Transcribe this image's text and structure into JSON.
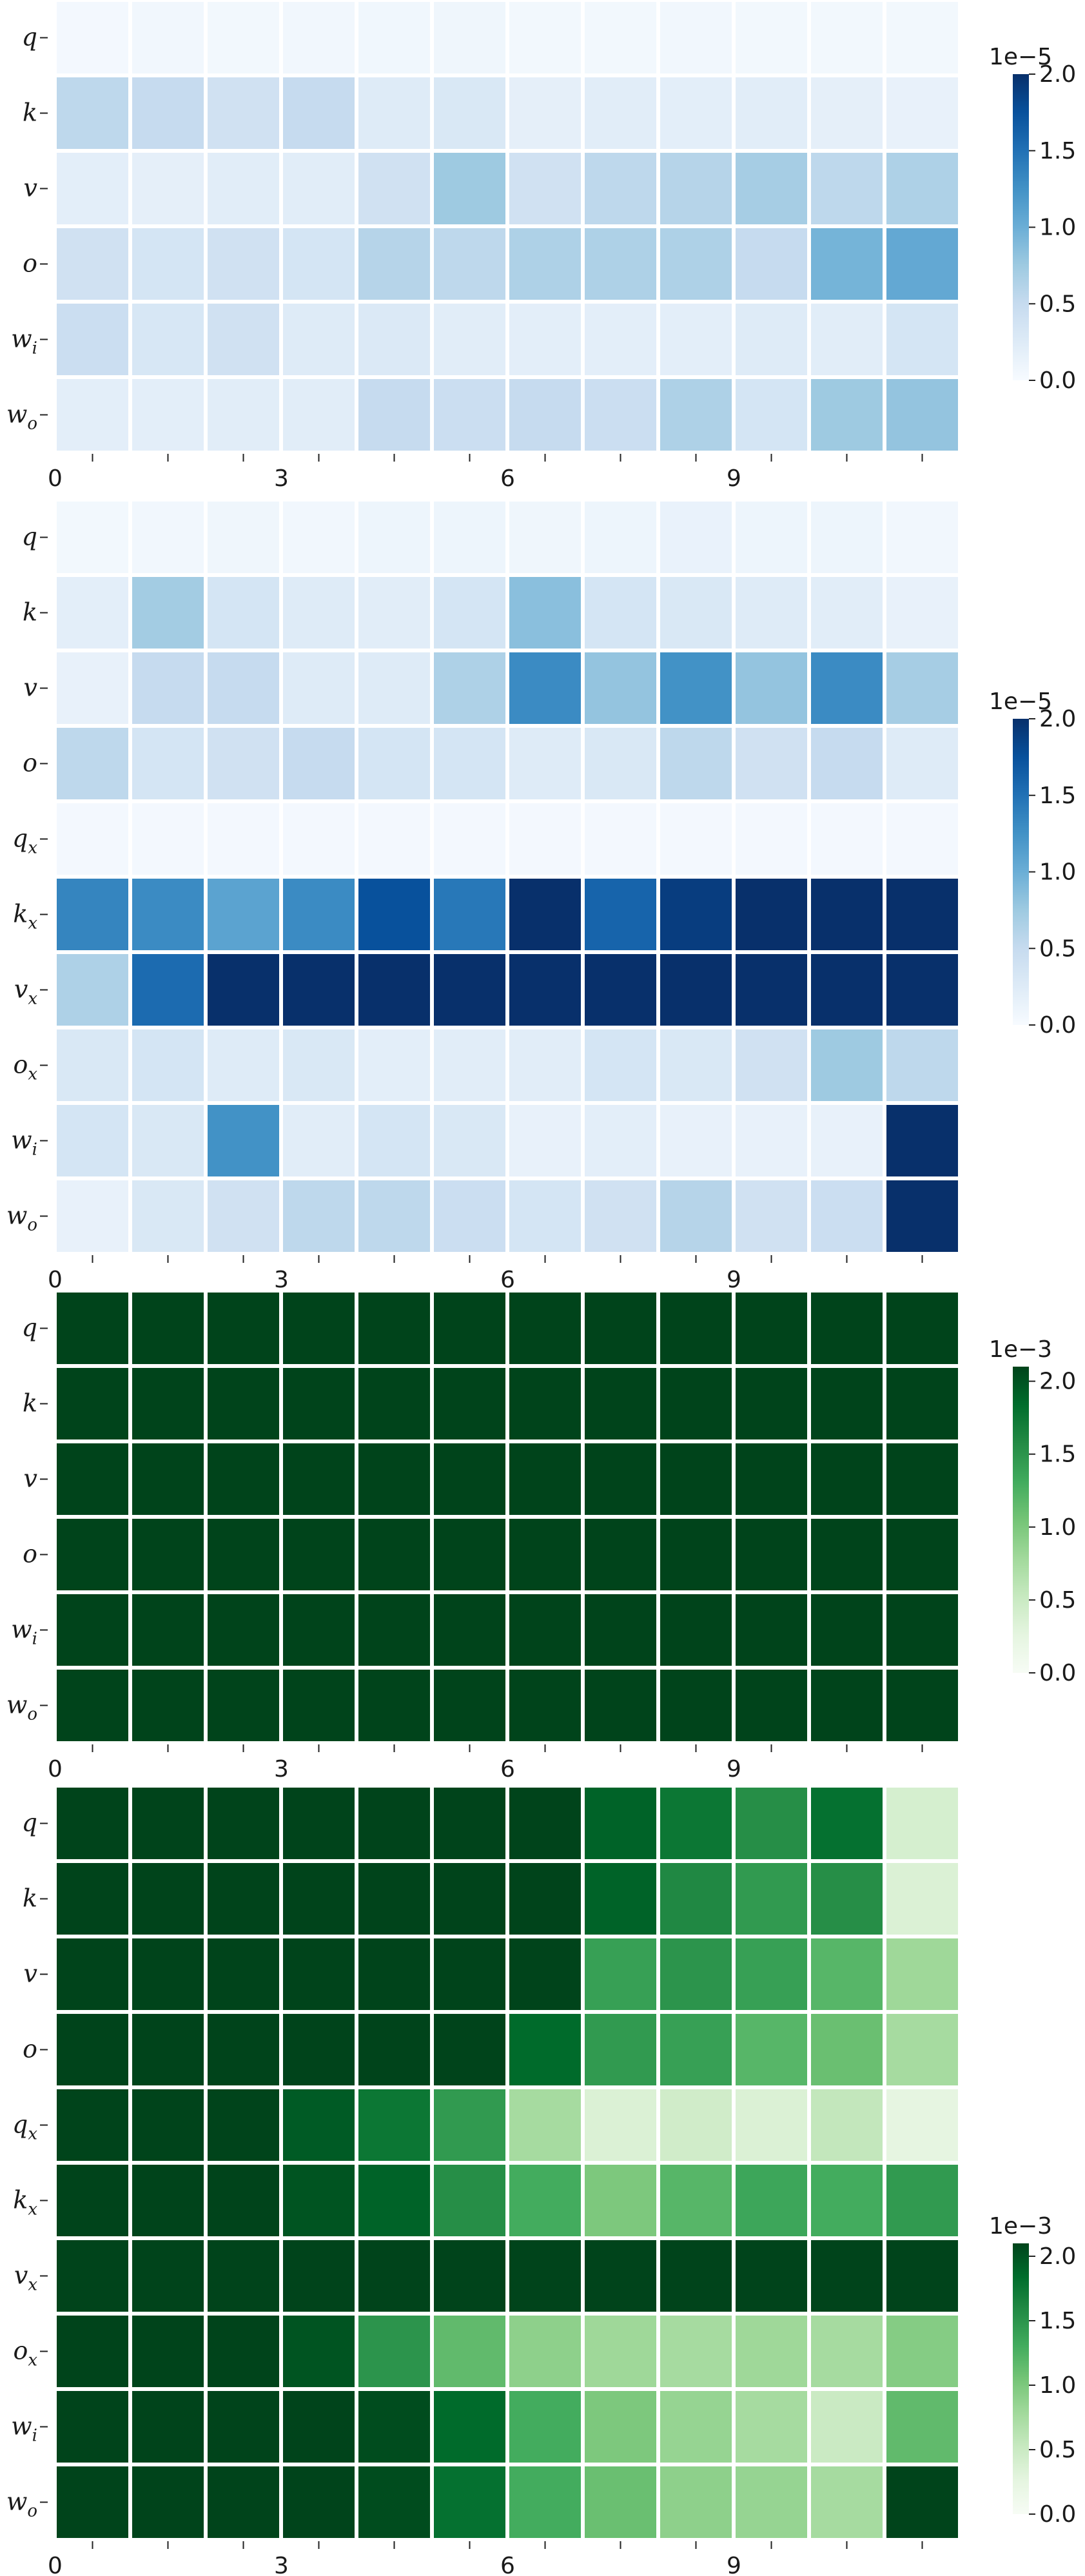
{
  "chart_data": [
    {
      "type": "heatmap",
      "colormap": "Blues",
      "rows": [
        "q",
        "k",
        "v",
        "o",
        "w_i",
        "w_o"
      ],
      "x_ticks": [
        "0",
        "3",
        "6",
        "9"
      ],
      "colorbar": {
        "exponent": "1e−5",
        "ticks": [
          "0.0",
          "0.5",
          "1.0",
          "1.5",
          "2.0"
        ],
        "vmin": 0,
        "vmax": 2.0
      },
      "values": [
        [
          0.04,
          0.06,
          0.05,
          0.06,
          0.07,
          0.08,
          0.05,
          0.05,
          0.06,
          0.05,
          0.05,
          0.05
        ],
        [
          0.55,
          0.5,
          0.4,
          0.5,
          0.25,
          0.3,
          0.18,
          0.22,
          0.2,
          0.22,
          0.18,
          0.15
        ],
        [
          0.2,
          0.18,
          0.22,
          0.22,
          0.4,
          0.75,
          0.4,
          0.55,
          0.6,
          0.7,
          0.55,
          0.65
        ],
        [
          0.4,
          0.35,
          0.4,
          0.35,
          0.6,
          0.55,
          0.65,
          0.65,
          0.65,
          0.5,
          0.95,
          1.05
        ],
        [
          0.45,
          0.32,
          0.4,
          0.25,
          0.28,
          0.22,
          0.2,
          0.2,
          0.2,
          0.25,
          0.22,
          0.35
        ],
        [
          0.2,
          0.2,
          0.22,
          0.22,
          0.5,
          0.45,
          0.5,
          0.45,
          0.65,
          0.35,
          0.75,
          0.8
        ]
      ]
    },
    {
      "type": "heatmap",
      "colormap": "Blues",
      "rows": [
        "q",
        "k",
        "v",
        "o",
        "q_x",
        "k_x",
        "v_x",
        "o_x",
        "w_i",
        "w_o"
      ],
      "x_ticks": [
        "0",
        "3",
        "6",
        "9"
      ],
      "colorbar": {
        "exponent": "1e−5",
        "ticks": [
          "0.0",
          "0.5",
          "1.0",
          "1.5",
          "2.0"
        ],
        "vmin": 0,
        "vmax": 2.0
      },
      "values": [
        [
          0.05,
          0.06,
          0.08,
          0.06,
          0.1,
          0.1,
          0.08,
          0.1,
          0.14,
          0.1,
          0.1,
          0.06
        ],
        [
          0.2,
          0.72,
          0.35,
          0.25,
          0.22,
          0.35,
          0.85,
          0.35,
          0.3,
          0.25,
          0.22,
          0.15
        ],
        [
          0.15,
          0.5,
          0.5,
          0.25,
          0.25,
          0.65,
          1.3,
          0.8,
          1.25,
          0.8,
          1.3,
          0.7
        ],
        [
          0.55,
          0.35,
          0.4,
          0.5,
          0.35,
          0.35,
          0.25,
          0.3,
          0.55,
          0.4,
          0.5,
          0.25
        ],
        [
          0.04,
          0.04,
          0.04,
          0.04,
          0.04,
          0.04,
          0.04,
          0.04,
          0.04,
          0.04,
          0.04,
          0.04
        ],
        [
          1.35,
          1.3,
          1.1,
          1.3,
          1.75,
          1.45,
          2.0,
          1.6,
          1.9,
          2.0,
          2.0,
          2.0
        ],
        [
          0.65,
          1.55,
          2.0,
          2.0,
          2.0,
          2.0,
          2.0,
          2.0,
          2.0,
          2.0,
          2.0,
          2.0
        ],
        [
          0.3,
          0.35,
          0.25,
          0.3,
          0.2,
          0.22,
          0.22,
          0.35,
          0.3,
          0.4,
          0.75,
          0.55
        ],
        [
          0.35,
          0.3,
          1.25,
          0.22,
          0.35,
          0.3,
          0.15,
          0.2,
          0.15,
          0.15,
          0.15,
          2.0
        ],
        [
          0.15,
          0.3,
          0.4,
          0.55,
          0.55,
          0.45,
          0.35,
          0.4,
          0.6,
          0.4,
          0.45,
          2.0
        ]
      ]
    },
    {
      "type": "heatmap",
      "colormap": "Greens",
      "rows": [
        "q",
        "k",
        "v",
        "o",
        "w_i",
        "w_o"
      ],
      "x_ticks": [
        "0",
        "3",
        "6",
        "9"
      ],
      "colorbar": {
        "exponent": "1e−3",
        "ticks": [
          "0.0",
          "0.5",
          "1.0",
          "1.5",
          "2.0"
        ],
        "vmin": 0,
        "vmax": 2.1
      },
      "values": [
        [
          2.1,
          2.1,
          2.1,
          2.1,
          2.1,
          2.1,
          2.1,
          2.1,
          2.1,
          2.1,
          2.1,
          2.1
        ],
        [
          2.1,
          2.1,
          2.1,
          2.1,
          2.1,
          2.1,
          2.1,
          2.1,
          2.1,
          2.1,
          2.1,
          2.1
        ],
        [
          2.1,
          2.1,
          2.1,
          2.1,
          2.1,
          2.1,
          2.1,
          2.1,
          2.1,
          2.1,
          2.1,
          2.1
        ],
        [
          2.1,
          2.1,
          2.1,
          2.1,
          2.1,
          2.1,
          2.1,
          2.1,
          2.1,
          2.1,
          2.1,
          2.1
        ],
        [
          2.1,
          2.1,
          2.1,
          2.1,
          2.1,
          2.1,
          2.1,
          2.1,
          2.1,
          2.1,
          2.1,
          2.1
        ],
        [
          2.1,
          2.1,
          2.1,
          2.1,
          2.1,
          2.1,
          2.1,
          2.1,
          2.1,
          2.1,
          2.1,
          2.1
        ]
      ]
    },
    {
      "type": "heatmap",
      "colormap": "Greens",
      "rows": [
        "q",
        "k",
        "v",
        "o",
        "q_x",
        "k_x",
        "v_x",
        "o_x",
        "w_i",
        "w_o"
      ],
      "x_ticks": [
        "0",
        "3",
        "6",
        "9"
      ],
      "colorbar": {
        "exponent": "1e−3",
        "ticks": [
          "0.0",
          "0.5",
          "1.0",
          "1.5",
          "2.0"
        ],
        "vmin": 0,
        "vmax": 2.1
      },
      "values": [
        [
          2.1,
          2.1,
          2.1,
          2.1,
          2.1,
          2.1,
          2.1,
          1.9,
          1.75,
          1.55,
          1.8,
          0.4
        ],
        [
          2.1,
          2.1,
          2.1,
          2.1,
          2.1,
          2.1,
          2.1,
          1.9,
          1.6,
          1.45,
          1.55,
          0.35
        ],
        [
          2.1,
          2.1,
          2.1,
          2.1,
          2.1,
          2.1,
          2.1,
          1.4,
          1.5,
          1.4,
          1.2,
          0.8
        ],
        [
          2.1,
          2.1,
          2.1,
          2.1,
          2.1,
          2.1,
          1.85,
          1.45,
          1.4,
          1.2,
          1.1,
          0.75
        ],
        [
          2.1,
          2.1,
          2.1,
          1.95,
          1.75,
          1.45,
          0.75,
          0.35,
          0.45,
          0.35,
          0.55,
          0.25
        ],
        [
          2.1,
          2.1,
          2.1,
          2.0,
          1.9,
          1.55,
          1.3,
          1.0,
          1.2,
          1.35,
          1.3,
          1.45
        ],
        [
          2.1,
          2.1,
          2.1,
          2.1,
          2.1,
          2.1,
          2.1,
          2.1,
          2.1,
          2.1,
          2.1,
          2.1
        ],
        [
          2.1,
          2.1,
          2.1,
          2.0,
          1.5,
          1.15,
          0.9,
          0.8,
          0.75,
          0.8,
          0.75,
          0.95
        ],
        [
          2.1,
          2.1,
          2.1,
          2.1,
          2.05,
          1.85,
          1.3,
          1.0,
          0.85,
          0.75,
          0.5,
          1.15
        ],
        [
          2.1,
          2.1,
          2.1,
          2.1,
          2.05,
          1.8,
          1.3,
          1.1,
          0.9,
          0.85,
          0.75,
          2.1
        ]
      ]
    }
  ]
}
